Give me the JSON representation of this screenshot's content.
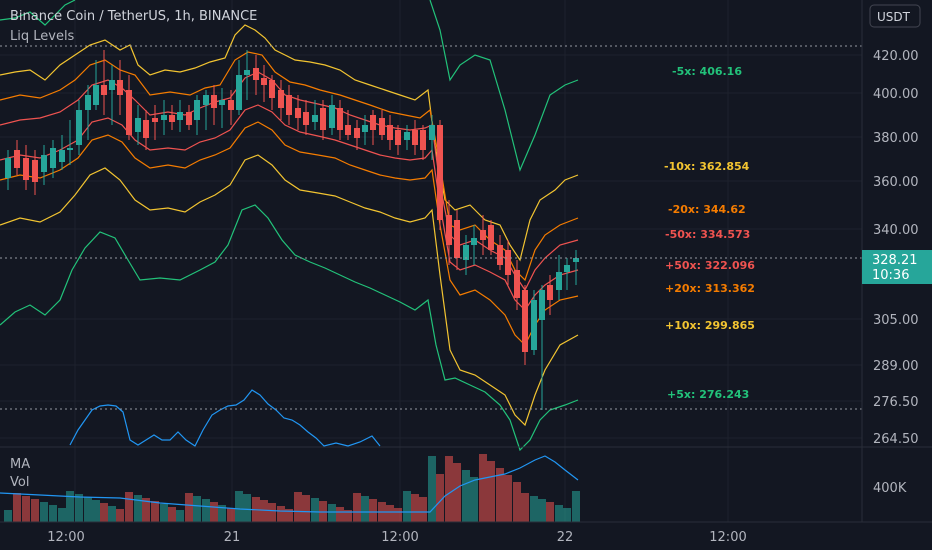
{
  "header": {
    "title": "Binance Coin / TetherUS, 1h, BINANCE",
    "indicator": "Liq Levels",
    "currency_button": "USDT",
    "ma_label": "MA",
    "vol_label": "Vol"
  },
  "price_badge": {
    "price": "328.21",
    "countdown": "10:36"
  },
  "colors": {
    "bg": "#131722",
    "up": "#26a69a",
    "down": "#ef5350",
    "x5": "#22c27a",
    "x10": "#f2c431",
    "x20": "#f57c00",
    "x50": "#ef5350",
    "ma": "#2196f3"
  },
  "chart_data": {
    "type": "candlestick",
    "y_ticks": [
      "420.00",
      "400.00",
      "380.00",
      "360.00",
      "340.00",
      "328.21",
      "305.00",
      "289.00",
      "276.50",
      "264.50"
    ],
    "volume_tick": "400K",
    "x_ticks": [
      "12:00",
      "21",
      "12:00",
      "22",
      "12:00"
    ],
    "liq_labels": [
      {
        "text": "-5x: 406.16",
        "color": "#22c27a"
      },
      {
        "text": "-10x: 362.854",
        "color": "#f2c431"
      },
      {
        "text": "-20x: 344.62",
        "color": "#f57c00"
      },
      {
        "text": "-50x: 334.573",
        "color": "#ef5350"
      },
      {
        "text": "+50x: 322.096",
        "color": "#ef5350"
      },
      {
        "text": "+20x: 313.362",
        "color": "#f57c00"
      },
      {
        "text": "+10x: 299.865",
        "color": "#f2c431"
      },
      {
        "text": "+5x: 276.243",
        "color": "#22c27a"
      }
    ]
  }
}
